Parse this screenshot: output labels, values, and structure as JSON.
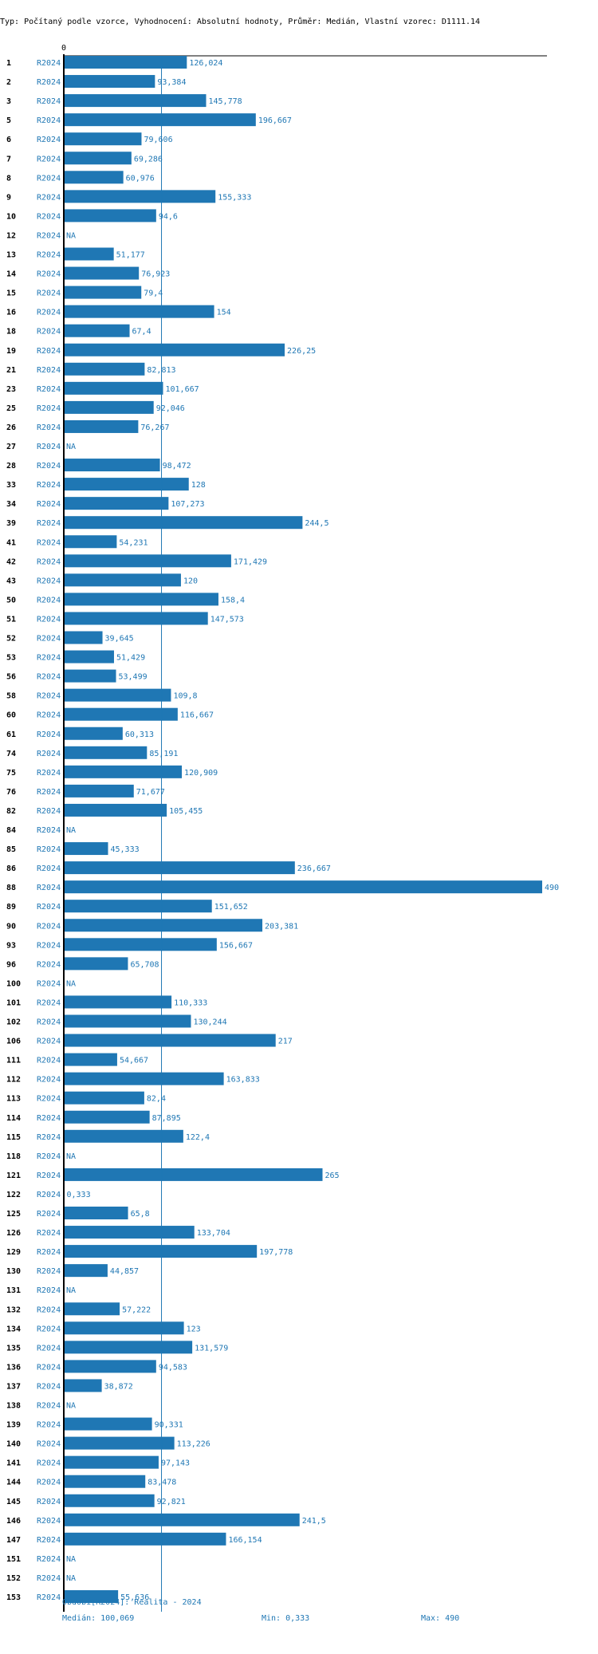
{
  "header": {
    "text": "Typ: Počítaný podle vzorce, Vyhodnocení: Absolutní hodnoty, Průměr: Medián, Vlastní vzorec: D1111.14"
  },
  "colors": {
    "bar": "#1f77b4",
    "label": "#1f77b4",
    "row": "#000000",
    "axis": "#000000"
  },
  "chart_data": {
    "type": "bar",
    "orientation": "horizontal",
    "axis_zero_label": "0",
    "xlim": [
      0,
      490
    ],
    "median": 100.069,
    "period_label": "R2024",
    "rows": [
      {
        "id": "1",
        "value": 126.024,
        "label": "126,024"
      },
      {
        "id": "2",
        "value": 93.384,
        "label": "93,384"
      },
      {
        "id": "3",
        "value": 145.778,
        "label": "145,778"
      },
      {
        "id": "5",
        "value": 196.667,
        "label": "196,667"
      },
      {
        "id": "6",
        "value": 79.606,
        "label": "79,606"
      },
      {
        "id": "7",
        "value": 69.286,
        "label": "69,286"
      },
      {
        "id": "8",
        "value": 60.976,
        "label": "60,976"
      },
      {
        "id": "9",
        "value": 155.333,
        "label": "155,333"
      },
      {
        "id": "10",
        "value": 94.6,
        "label": "94,6"
      },
      {
        "id": "12",
        "value": null,
        "label": "NA"
      },
      {
        "id": "13",
        "value": 51.177,
        "label": "51,177"
      },
      {
        "id": "14",
        "value": 76.923,
        "label": "76,923"
      },
      {
        "id": "15",
        "value": 79.4,
        "label": "79,4"
      },
      {
        "id": "16",
        "value": 154,
        "label": "154"
      },
      {
        "id": "18",
        "value": 67.4,
        "label": "67,4"
      },
      {
        "id": "19",
        "value": 226.25,
        "label": "226,25"
      },
      {
        "id": "21",
        "value": 82.813,
        "label": "82,813"
      },
      {
        "id": "23",
        "value": 101.667,
        "label": "101,667"
      },
      {
        "id": "25",
        "value": 92.046,
        "label": "92,046"
      },
      {
        "id": "26",
        "value": 76.267,
        "label": "76,267"
      },
      {
        "id": "27",
        "value": null,
        "label": "NA"
      },
      {
        "id": "28",
        "value": 98.472,
        "label": "98,472"
      },
      {
        "id": "33",
        "value": 128,
        "label": "128"
      },
      {
        "id": "34",
        "value": 107.273,
        "label": "107,273"
      },
      {
        "id": "39",
        "value": 244.5,
        "label": "244,5"
      },
      {
        "id": "41",
        "value": 54.231,
        "label": "54,231"
      },
      {
        "id": "42",
        "value": 171.429,
        "label": "171,429"
      },
      {
        "id": "43",
        "value": 120,
        "label": "120"
      },
      {
        "id": "50",
        "value": 158.4,
        "label": "158,4"
      },
      {
        "id": "51",
        "value": 147.573,
        "label": "147,573"
      },
      {
        "id": "52",
        "value": 39.645,
        "label": "39,645"
      },
      {
        "id": "53",
        "value": 51.429,
        "label": "51,429"
      },
      {
        "id": "56",
        "value": 53.499,
        "label": "53,499"
      },
      {
        "id": "58",
        "value": 109.8,
        "label": "109,8"
      },
      {
        "id": "60",
        "value": 116.667,
        "label": "116,667"
      },
      {
        "id": "61",
        "value": 60.313,
        "label": "60,313"
      },
      {
        "id": "74",
        "value": 85.191,
        "label": "85,191"
      },
      {
        "id": "75",
        "value": 120.909,
        "label": "120,909"
      },
      {
        "id": "76",
        "value": 71.677,
        "label": "71,677"
      },
      {
        "id": "82",
        "value": 105.455,
        "label": "105,455"
      },
      {
        "id": "84",
        "value": null,
        "label": "NA"
      },
      {
        "id": "85",
        "value": 45.333,
        "label": "45,333"
      },
      {
        "id": "86",
        "value": 236.667,
        "label": "236,667"
      },
      {
        "id": "88",
        "value": 490,
        "label": "490"
      },
      {
        "id": "89",
        "value": 151.652,
        "label": "151,652"
      },
      {
        "id": "90",
        "value": 203.381,
        "label": "203,381"
      },
      {
        "id": "93",
        "value": 156.667,
        "label": "156,667"
      },
      {
        "id": "96",
        "value": 65.708,
        "label": "65,708"
      },
      {
        "id": "100",
        "value": null,
        "label": "NA"
      },
      {
        "id": "101",
        "value": 110.333,
        "label": "110,333"
      },
      {
        "id": "102",
        "value": 130.244,
        "label": "130,244"
      },
      {
        "id": "106",
        "value": 217,
        "label": "217"
      },
      {
        "id": "111",
        "value": 54.667,
        "label": "54,667"
      },
      {
        "id": "112",
        "value": 163.833,
        "label": "163,833"
      },
      {
        "id": "113",
        "value": 82.4,
        "label": "82,4"
      },
      {
        "id": "114",
        "value": 87.895,
        "label": "87,895"
      },
      {
        "id": "115",
        "value": 122.4,
        "label": "122,4"
      },
      {
        "id": "118",
        "value": null,
        "label": "NA"
      },
      {
        "id": "121",
        "value": 265,
        "label": "265"
      },
      {
        "id": "122",
        "value": 0.333,
        "label": "0,333"
      },
      {
        "id": "125",
        "value": 65.8,
        "label": "65,8"
      },
      {
        "id": "126",
        "value": 133.704,
        "label": "133,704"
      },
      {
        "id": "129",
        "value": 197.778,
        "label": "197,778"
      },
      {
        "id": "130",
        "value": 44.857,
        "label": "44,857"
      },
      {
        "id": "131",
        "value": null,
        "label": "NA"
      },
      {
        "id": "132",
        "value": 57.222,
        "label": "57,222"
      },
      {
        "id": "134",
        "value": 123,
        "label": "123"
      },
      {
        "id": "135",
        "value": 131.579,
        "label": "131,579"
      },
      {
        "id": "136",
        "value": 94.583,
        "label": "94,583"
      },
      {
        "id": "137",
        "value": 38.872,
        "label": "38,872"
      },
      {
        "id": "138",
        "value": null,
        "label": "NA"
      },
      {
        "id": "139",
        "value": 90.331,
        "label": "90,331"
      },
      {
        "id": "140",
        "value": 113.226,
        "label": "113,226"
      },
      {
        "id": "141",
        "value": 97.143,
        "label": "97,143"
      },
      {
        "id": "144",
        "value": 83.478,
        "label": "83,478"
      },
      {
        "id": "145",
        "value": 92.821,
        "label": "92,821"
      },
      {
        "id": "146",
        "value": 241.5,
        "label": "241,5"
      },
      {
        "id": "147",
        "value": 166.154,
        "label": "166,154"
      },
      {
        "id": "151",
        "value": null,
        "label": "NA"
      },
      {
        "id": "152",
        "value": null,
        "label": "NA"
      },
      {
        "id": "153",
        "value": 55.636,
        "label": "55,636"
      }
    ]
  },
  "footer": {
    "period": "Období[R2024]: Realita - 2024",
    "median": "Medián: 100,069",
    "min": "Min: 0,333",
    "max": "Max: 490"
  }
}
